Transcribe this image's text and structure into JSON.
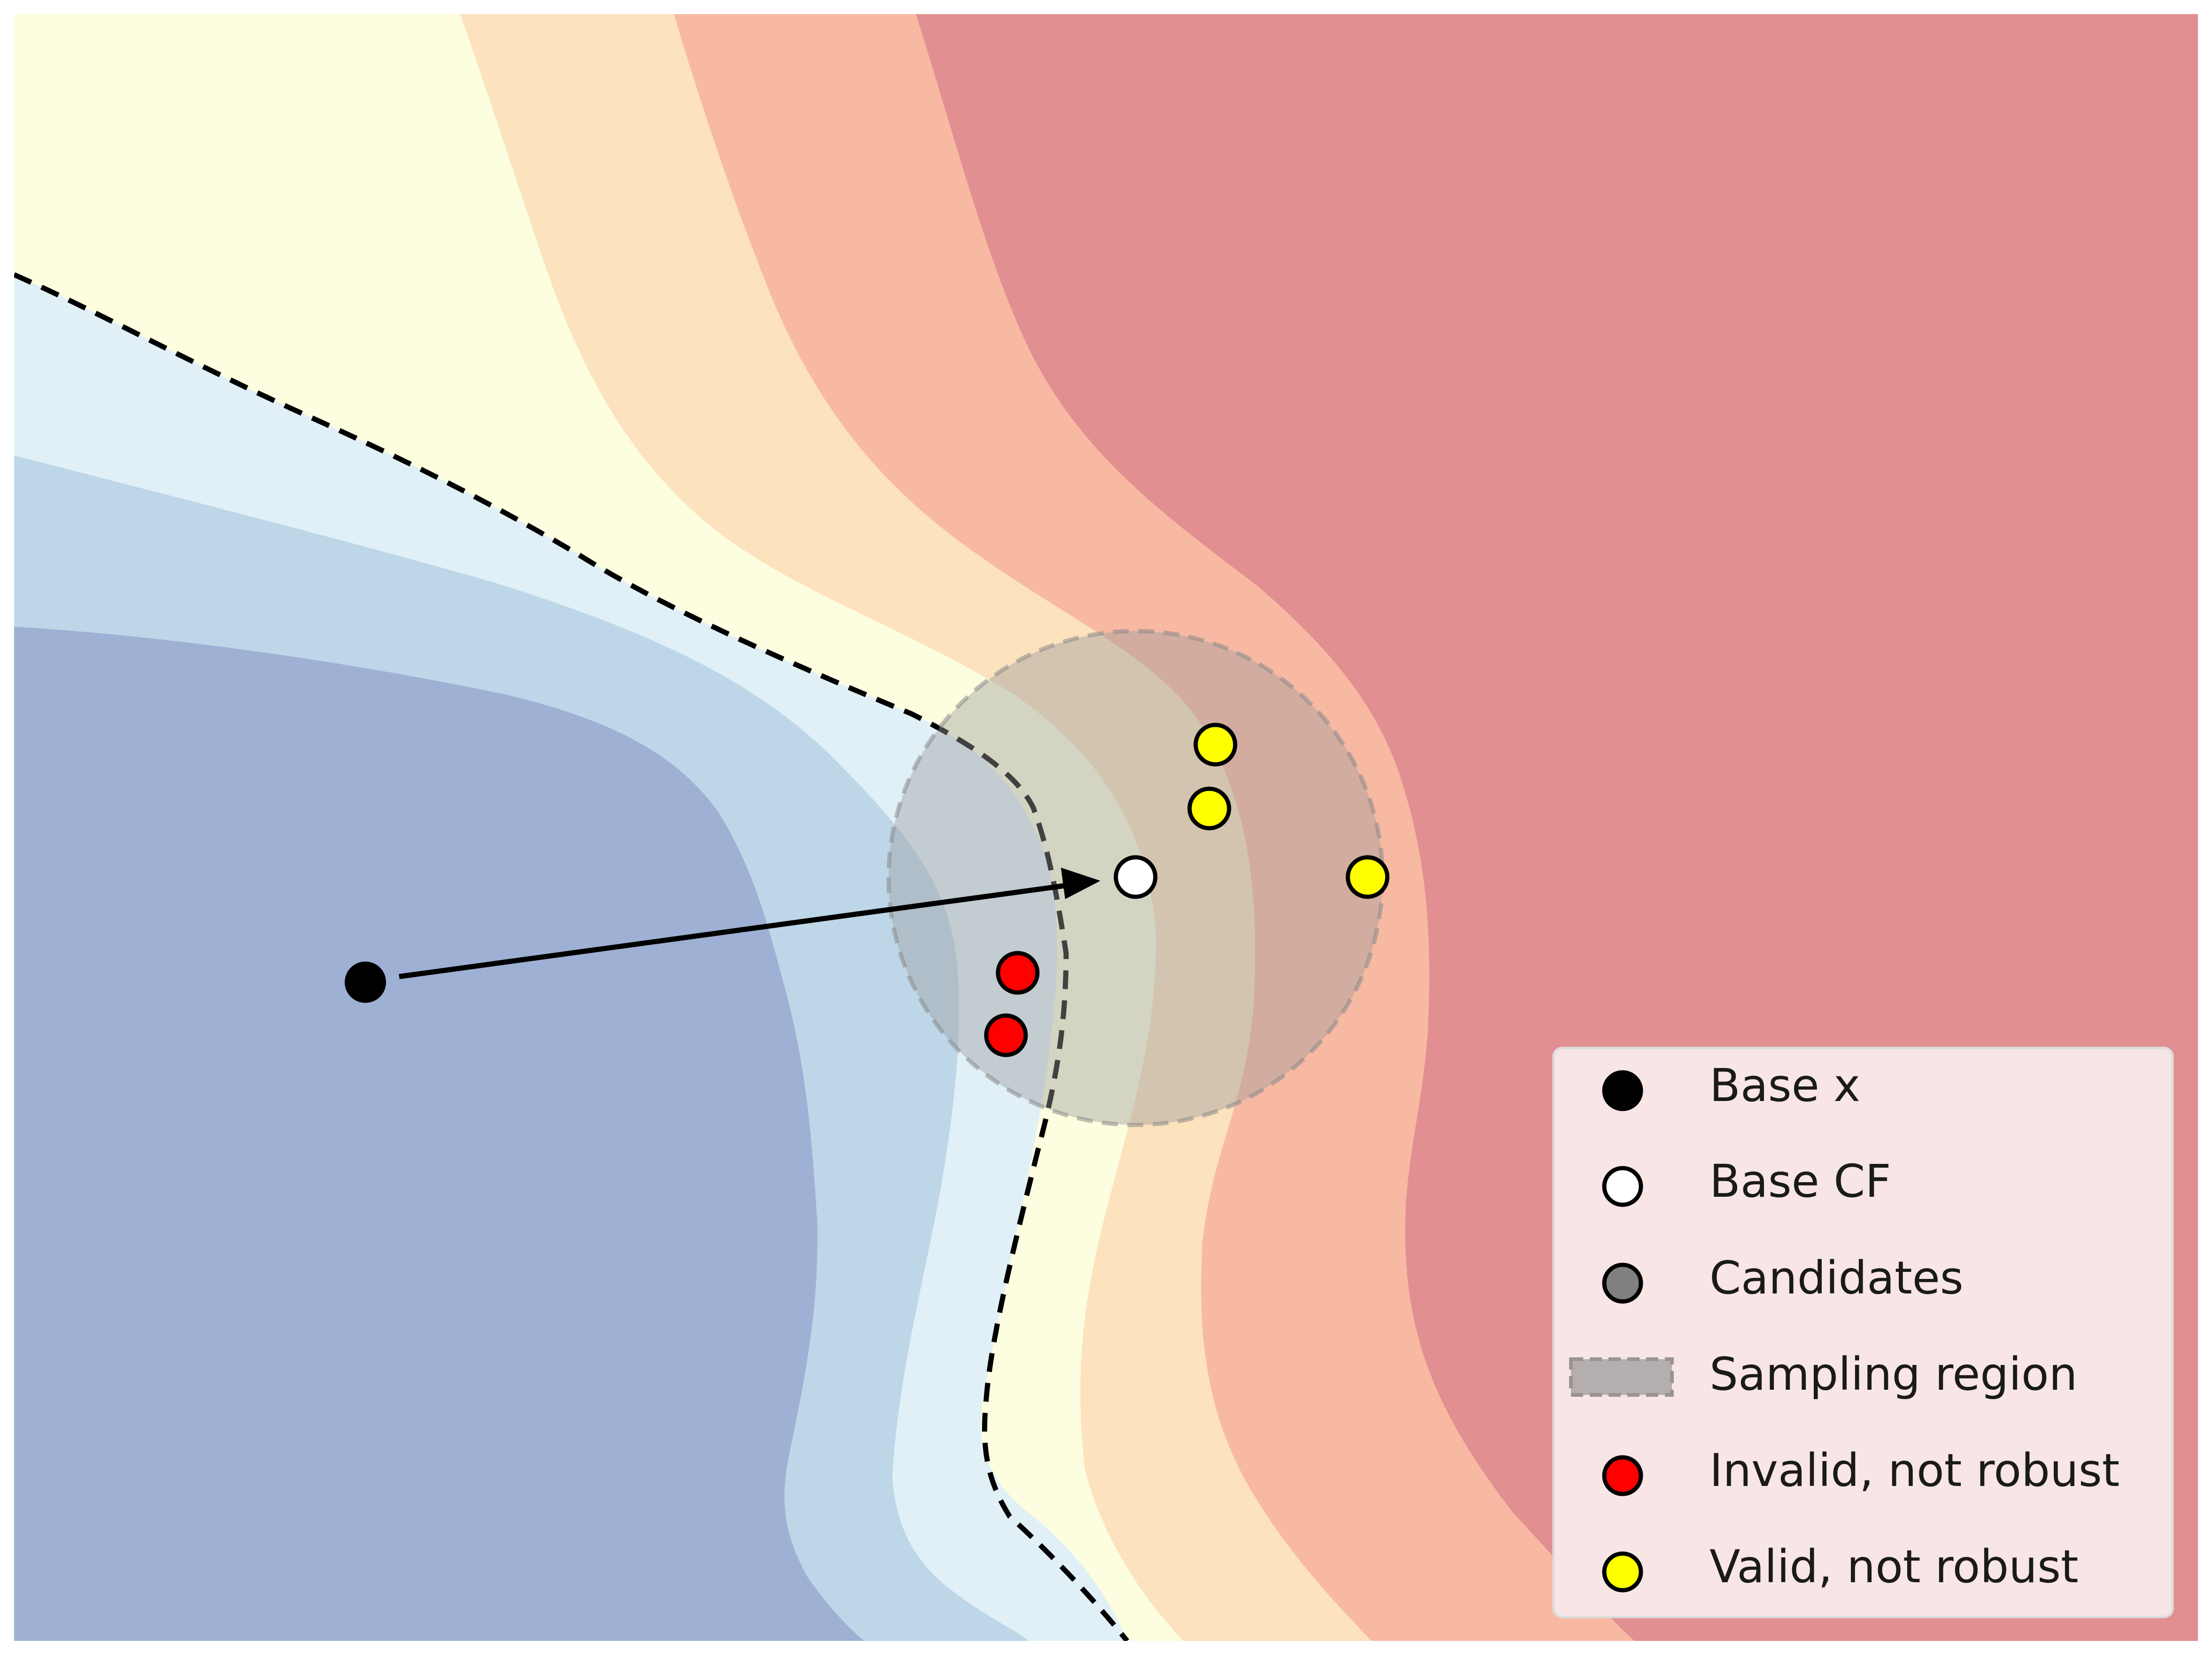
{
  "figure": {
    "regions": [
      {
        "name": "region-deep-blue",
        "color": "#9eb0d3"
      },
      {
        "name": "region-mid-blue",
        "color": "#bdd7e8"
      },
      {
        "name": "region-light-blue",
        "color": "#e0f0f6"
      },
      {
        "name": "region-light-yellow",
        "color": "#fdfde0"
      },
      {
        "name": "region-peach",
        "color": "#fce2bd"
      },
      {
        "name": "region-salmon",
        "color": "#f8b9a3"
      },
      {
        "name": "region-red",
        "color": "#e28f92"
      }
    ],
    "decision_boundary": {
      "style": "dashed",
      "color": "#000000"
    },
    "sampling_region": {
      "fill": "#9a9a9a",
      "opacity": 0.42
    },
    "points": {
      "base_x": {
        "color": "#000000"
      },
      "base_cf": {
        "color": "#ffffff"
      },
      "invalid": {
        "color": "#ff0000",
        "count": 2
      },
      "valid": {
        "color": "#ffff00",
        "count": 3
      }
    },
    "arrow": {
      "from": "base_x",
      "to": "base_cf",
      "color": "#000000"
    }
  },
  "legend": {
    "placement": "bottom-right",
    "items": [
      {
        "label": "Base x",
        "marker": "filled-circle",
        "color": "#000000"
      },
      {
        "label": "Base CF",
        "marker": "hollow-circle",
        "color": "#ffffff"
      },
      {
        "label": "Candidates",
        "marker": "filled-circle",
        "color": "#808080"
      },
      {
        "label": "Sampling region",
        "marker": "dashed-rect",
        "color": "#b5aeae"
      },
      {
        "label": "Invalid, not robust",
        "marker": "filled-circle",
        "color": "#ff0000"
      },
      {
        "label": "Valid, not robust",
        "marker": "filled-circle",
        "color": "#ffff00"
      }
    ]
  }
}
